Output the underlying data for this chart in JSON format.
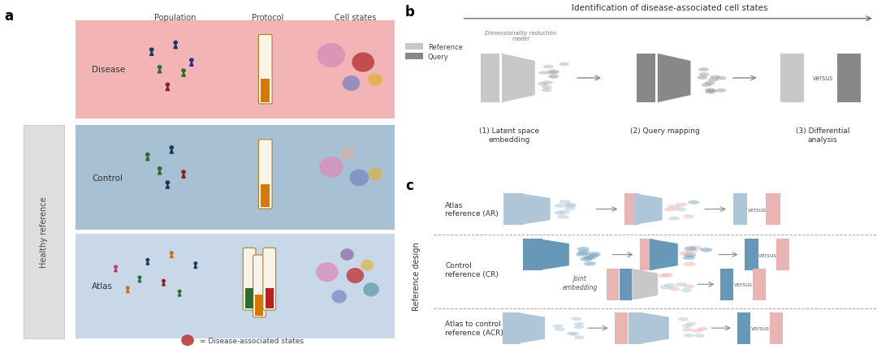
{
  "fig_width": 10.8,
  "fig_height": 4.31,
  "bg_color": "#ffffff",
  "panel_a": {
    "disease_bg": "#f2b4b4",
    "control_bg": "#a8c0d4",
    "atlas_bg": "#c8d8e8",
    "healthy_ref_bg": "#dedede",
    "rows": [
      "Disease",
      "Control",
      "Atlas"
    ],
    "cols": [
      "Population",
      "Protocol",
      "Cell states"
    ],
    "healthy_ref_label": "Healthy reference"
  },
  "panel_b": {
    "title": "Identification of disease-associated cell states",
    "steps": [
      "(1) Latent space\nembedding",
      "(2) Query mapping",
      "(3) Differential\nanalysis"
    ],
    "legend": [
      "Reference",
      "Query"
    ],
    "ref_color": "#c8c8c8",
    "query_color": "#888888",
    "arrow_color": "#888888"
  },
  "panel_c": {
    "ref_color_blue": "#aec6d8",
    "ref_color_pink": "#e8b4b4",
    "dark_blue": "#6898b8",
    "row_label": "Reference design",
    "joint_embedding_label": "Joint\nembedding"
  },
  "colors": {
    "light_blue": "#b8cfe0",
    "medium_blue": "#6898b8",
    "light_pink": "#f0c0c0",
    "dark_blue": "#5580a0",
    "gray_ref": "#c0c0c0",
    "gray_query": "#888888",
    "text_dark": "#333333"
  }
}
